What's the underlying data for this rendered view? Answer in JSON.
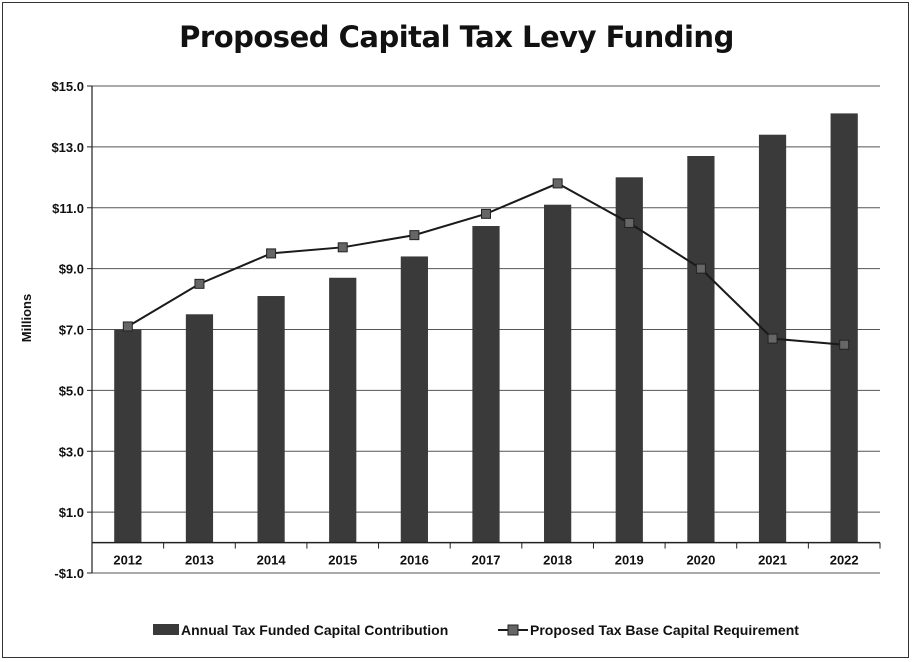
{
  "chart_data": {
    "type": "bar",
    "title": "Proposed Capital Tax Levy Funding",
    "ylabel": "Millions",
    "xlabel": "",
    "categories": [
      "2012",
      "2013",
      "2014",
      "2015",
      "2016",
      "2017",
      "2018",
      "2019",
      "2020",
      "2021",
      "2022"
    ],
    "ylim": [
      -1.0,
      15.0
    ],
    "yticks": [
      15.0,
      13.0,
      11.0,
      9.0,
      7.0,
      5.0,
      3.0,
      1.0,
      -1.0
    ],
    "ytick_labels": [
      "$15.0",
      "$13.0",
      "$11.0",
      "$9.0",
      "$7.0",
      "$5.0",
      "$3.0",
      "$1.0",
      "-$1.0"
    ],
    "grid": "horizontal",
    "legend_position": "bottom",
    "series": [
      {
        "name": "Annual Tax Funded Capital Contribution",
        "type": "bar",
        "color": "#3a3a3a",
        "values": [
          7.0,
          7.5,
          8.1,
          8.7,
          9.4,
          10.4,
          11.1,
          12.0,
          12.7,
          13.4,
          14.1
        ]
      },
      {
        "name": "Proposed Tax Base Capital Requirement",
        "type": "line",
        "color": "#1a1a1a",
        "values": [
          7.1,
          8.5,
          9.5,
          9.7,
          10.1,
          10.8,
          11.8,
          10.5,
          9.0,
          6.7,
          6.5
        ]
      }
    ]
  }
}
